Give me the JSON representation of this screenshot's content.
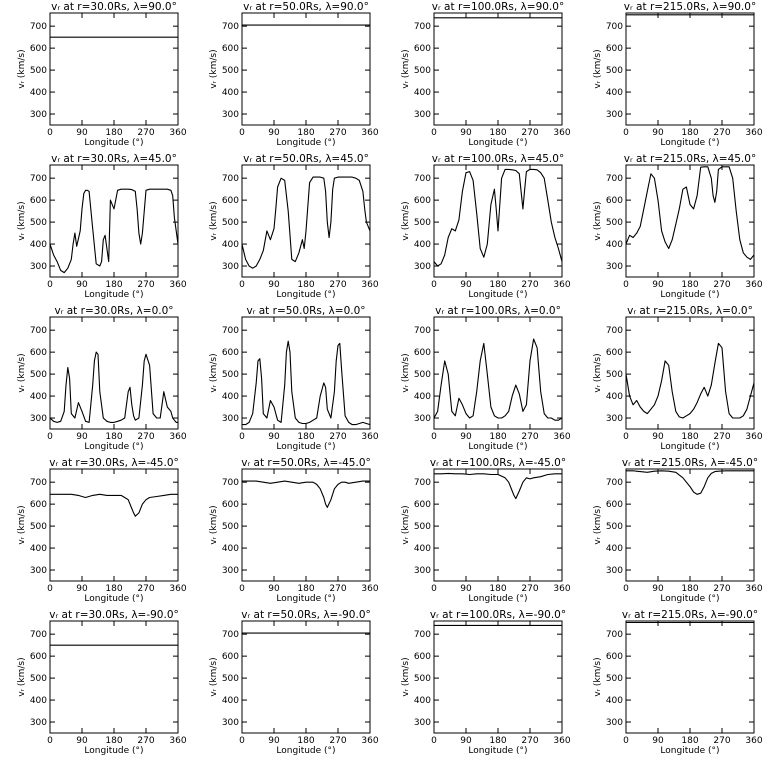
{
  "figure": {
    "background": "#ffffff",
    "line_color": "#000000"
  },
  "chart_data": {
    "type": "line",
    "grid": false,
    "xlabel": "Longitude (°)",
    "ylabel": "vᵣ (km/s)",
    "xlim": [
      0,
      360
    ],
    "ylim": [
      250,
      760
    ],
    "xticks": [
      0,
      90,
      180,
      270,
      360
    ],
    "yticks": [
      300,
      400,
      500,
      600,
      700
    ],
    "radii": [
      "30.0",
      "50.0",
      "100.0",
      "215.0"
    ],
    "latitudes": [
      "90.0",
      "45.0",
      "0.0",
      "-45.0",
      "-90.0"
    ],
    "panels": [
      {
        "title": "vᵣ at r=30.0Rs, λ=90.0°",
        "x": [
          0,
          360
        ],
        "y": [
          650,
          650
        ]
      },
      {
        "title": "vᵣ at r=50.0Rs, λ=90.0°",
        "x": [
          0,
          360
        ],
        "y": [
          705,
          705
        ]
      },
      {
        "title": "vᵣ at r=100.0Rs, λ=90.0°",
        "x": [
          0,
          360
        ],
        "y": [
          738,
          738
        ]
      },
      {
        "title": "vᵣ at r=215.0Rs, λ=90.0°",
        "x": [
          0,
          360
        ],
        "y": [
          752,
          752
        ]
      },
      {
        "title": "vᵣ at r=30.0Rs, λ=45.0°",
        "x": [
          0,
          10,
          20,
          30,
          40,
          50,
          60,
          65,
          70,
          75,
          85,
          90,
          95,
          100,
          105,
          110,
          120,
          130,
          140,
          145,
          150,
          155,
          160,
          165,
          170,
          180,
          190,
          200,
          210,
          220,
          230,
          240,
          245,
          250,
          255,
          260,
          270,
          280,
          290,
          300,
          310,
          320,
          330,
          340,
          345,
          350,
          360
        ],
        "y": [
          400,
          350,
          320,
          280,
          270,
          290,
          330,
          400,
          450,
          390,
          460,
          560,
          630,
          645,
          645,
          640,
          470,
          310,
          300,
          320,
          420,
          440,
          380,
          320,
          600,
          560,
          645,
          650,
          650,
          650,
          648,
          640,
          560,
          450,
          400,
          450,
          645,
          650,
          650,
          650,
          650,
          650,
          650,
          645,
          620,
          520,
          400
        ]
      },
      {
        "title": "vᵣ at r=50.0Rs, λ=45.0°",
        "x": [
          0,
          10,
          20,
          30,
          40,
          50,
          60,
          70,
          80,
          90,
          95,
          100,
          110,
          120,
          130,
          140,
          150,
          160,
          170,
          175,
          180,
          190,
          200,
          210,
          220,
          230,
          235,
          240,
          245,
          250,
          255,
          260,
          270,
          280,
          290,
          300,
          310,
          320,
          330,
          340,
          345,
          350,
          360
        ],
        "y": [
          400,
          330,
          300,
          290,
          300,
          330,
          370,
          460,
          420,
          470,
          560,
          660,
          700,
          690,
          550,
          330,
          320,
          360,
          420,
          380,
          460,
          680,
          705,
          705,
          705,
          700,
          640,
          500,
          430,
          500,
          650,
          700,
          705,
          705,
          705,
          705,
          705,
          700,
          690,
          640,
          560,
          500,
          460
        ]
      },
      {
        "title": "vᵣ at r=100.0Rs, λ=45.0°",
        "x": [
          0,
          10,
          20,
          30,
          40,
          50,
          60,
          70,
          80,
          90,
          100,
          110,
          120,
          130,
          140,
          150,
          160,
          170,
          175,
          180,
          190,
          200,
          210,
          220,
          230,
          240,
          245,
          250,
          255,
          260,
          270,
          280,
          290,
          300,
          310,
          320,
          330,
          340,
          350,
          360
        ],
        "y": [
          320,
          300,
          310,
          350,
          430,
          470,
          460,
          510,
          640,
          725,
          730,
          690,
          540,
          380,
          340,
          400,
          580,
          650,
          560,
          460,
          700,
          740,
          740,
          738,
          735,
          720,
          640,
          560,
          650,
          730,
          740,
          740,
          738,
          725,
          700,
          600,
          500,
          430,
          380,
          320
        ]
      },
      {
        "title": "vᵣ at r=215.0Rs, λ=45.0°",
        "x": [
          0,
          10,
          20,
          30,
          40,
          50,
          60,
          70,
          80,
          90,
          100,
          110,
          120,
          130,
          140,
          150,
          160,
          170,
          180,
          190,
          200,
          210,
          220,
          230,
          240,
          245,
          250,
          255,
          260,
          270,
          280,
          290,
          300,
          310,
          320,
          330,
          340,
          350,
          360
        ],
        "y": [
          400,
          440,
          430,
          450,
          480,
          560,
          640,
          720,
          700,
          600,
          460,
          410,
          380,
          420,
          490,
          560,
          650,
          660,
          580,
          560,
          620,
          750,
          752,
          752,
          700,
          620,
          590,
          640,
          740,
          752,
          752,
          752,
          700,
          550,
          420,
          360,
          340,
          330,
          350
        ]
      },
      {
        "title": "vᵣ at r=30.0Rs, λ=0.0°",
        "x": [
          0,
          10,
          20,
          30,
          40,
          45,
          50,
          55,
          60,
          70,
          80,
          90,
          100,
          110,
          120,
          125,
          130,
          135,
          140,
          150,
          160,
          170,
          180,
          190,
          200,
          210,
          220,
          225,
          230,
          235,
          240,
          250,
          260,
          265,
          270,
          280,
          290,
          300,
          310,
          320,
          330,
          340,
          345,
          350,
          355,
          360
        ],
        "y": [
          300,
          285,
          280,
          285,
          330,
          450,
          530,
          480,
          320,
          300,
          370,
          330,
          285,
          280,
          450,
          560,
          600,
          590,
          420,
          300,
          285,
          280,
          280,
          285,
          290,
          300,
          420,
          440,
          360,
          310,
          290,
          300,
          450,
          560,
          590,
          540,
          320,
          300,
          300,
          420,
          350,
          330,
          300,
          290,
          280,
          280
        ]
      },
      {
        "title": "vᵣ at r=50.0Rs, λ=0.0°",
        "x": [
          0,
          10,
          20,
          30,
          40,
          45,
          50,
          55,
          60,
          70,
          80,
          90,
          100,
          110,
          120,
          125,
          130,
          135,
          140,
          150,
          160,
          170,
          180,
          190,
          200,
          210,
          220,
          230,
          235,
          240,
          250,
          260,
          265,
          270,
          275,
          280,
          290,
          300,
          310,
          320,
          330,
          340,
          350,
          360
        ],
        "y": [
          270,
          270,
          280,
          320,
          460,
          560,
          570,
          480,
          320,
          300,
          380,
          350,
          290,
          280,
          450,
          600,
          650,
          600,
          420,
          300,
          280,
          275,
          275,
          280,
          290,
          300,
          400,
          460,
          440,
          340,
          300,
          420,
          560,
          630,
          640,
          520,
          310,
          280,
          270,
          270,
          275,
          280,
          275,
          270
        ]
      },
      {
        "title": "vᵣ at r=100.0Rs, λ=0.0°",
        "x": [
          0,
          10,
          20,
          30,
          40,
          50,
          60,
          70,
          80,
          90,
          100,
          110,
          120,
          130,
          140,
          150,
          160,
          170,
          180,
          190,
          200,
          210,
          220,
          230,
          240,
          250,
          260,
          270,
          280,
          290,
          300,
          310,
          320,
          330,
          340,
          350,
          360
        ],
        "y": [
          300,
          330,
          450,
          560,
          500,
          330,
          310,
          390,
          360,
          320,
          300,
          310,
          420,
          560,
          640,
          500,
          350,
          310,
          300,
          300,
          310,
          330,
          400,
          450,
          410,
          330,
          360,
          560,
          660,
          620,
          420,
          320,
          300,
          300,
          290,
          290,
          300
        ]
      },
      {
        "title": "vᵣ at r=215.0Rs, λ=0.0°",
        "x": [
          0,
          10,
          20,
          30,
          40,
          50,
          60,
          70,
          80,
          90,
          100,
          110,
          120,
          130,
          140,
          150,
          160,
          170,
          180,
          190,
          200,
          210,
          220,
          230,
          240,
          250,
          260,
          270,
          280,
          290,
          300,
          310,
          320,
          330,
          340,
          350,
          360
        ],
        "y": [
          500,
          400,
          360,
          380,
          350,
          330,
          320,
          340,
          360,
          400,
          470,
          560,
          540,
          420,
          330,
          305,
          300,
          310,
          320,
          340,
          370,
          410,
          440,
          400,
          450,
          550,
          640,
          620,
          420,
          320,
          300,
          300,
          300,
          310,
          340,
          400,
          460
        ]
      },
      {
        "title": "vᵣ at r=30.0Rs, λ=-45.0°",
        "x": [
          0,
          20,
          40,
          60,
          80,
          90,
          100,
          120,
          140,
          160,
          180,
          200,
          210,
          220,
          230,
          235,
          240,
          250,
          260,
          270,
          280,
          300,
          320,
          340,
          360
        ],
        "y": [
          645,
          645,
          645,
          645,
          640,
          635,
          630,
          640,
          645,
          640,
          640,
          640,
          630,
          620,
          580,
          560,
          545,
          560,
          600,
          620,
          630,
          635,
          640,
          645,
          645
        ]
      },
      {
        "title": "vᵣ at r=50.0Rs, λ=-45.0°",
        "x": [
          0,
          20,
          40,
          60,
          80,
          100,
          120,
          140,
          160,
          180,
          200,
          210,
          220,
          230,
          235,
          240,
          250,
          260,
          270,
          280,
          290,
          300,
          320,
          340,
          360
        ],
        "y": [
          705,
          705,
          705,
          700,
          695,
          700,
          705,
          700,
          695,
          700,
          700,
          690,
          670,
          630,
          600,
          585,
          620,
          670,
          690,
          700,
          700,
          695,
          700,
          705,
          705
        ]
      },
      {
        "title": "vᵣ at r=100.0Rs, λ=-45.0°",
        "x": [
          0,
          20,
          40,
          60,
          80,
          100,
          120,
          140,
          160,
          180,
          200,
          210,
          220,
          225,
          230,
          240,
          250,
          260,
          270,
          280,
          300,
          320,
          340,
          360
        ],
        "y": [
          738,
          738,
          740,
          738,
          738,
          735,
          738,
          738,
          735,
          735,
          720,
          700,
          660,
          640,
          625,
          660,
          700,
          720,
          715,
          720,
          725,
          735,
          738,
          738
        ]
      },
      {
        "title": "vᵣ at r=215.0Rs, λ=-45.0°",
        "x": [
          0,
          20,
          40,
          60,
          80,
          100,
          120,
          140,
          160,
          170,
          180,
          190,
          200,
          210,
          220,
          230,
          240,
          250,
          260,
          280,
          300,
          320,
          340,
          360
        ],
        "y": [
          752,
          752,
          748,
          745,
          750,
          752,
          750,
          745,
          720,
          700,
          680,
          655,
          645,
          650,
          680,
          720,
          740,
          748,
          750,
          752,
          752,
          752,
          752,
          752
        ]
      },
      {
        "title": "vᵣ at r=30.0Rs, λ=-90.0°",
        "x": [
          0,
          360
        ],
        "y": [
          650,
          650
        ]
      },
      {
        "title": "vᵣ at r=50.0Rs, λ=-90.0°",
        "x": [
          0,
          360
        ],
        "y": [
          705,
          705
        ]
      },
      {
        "title": "vᵣ at r=100.0Rs, λ=-90.0°",
        "x": [
          0,
          360
        ],
        "y": [
          740,
          740
        ]
      },
      {
        "title": "vᵣ at r=215.0Rs, λ=-90.0°",
        "x": [
          0,
          360
        ],
        "y": [
          753,
          753
        ]
      }
    ]
  }
}
